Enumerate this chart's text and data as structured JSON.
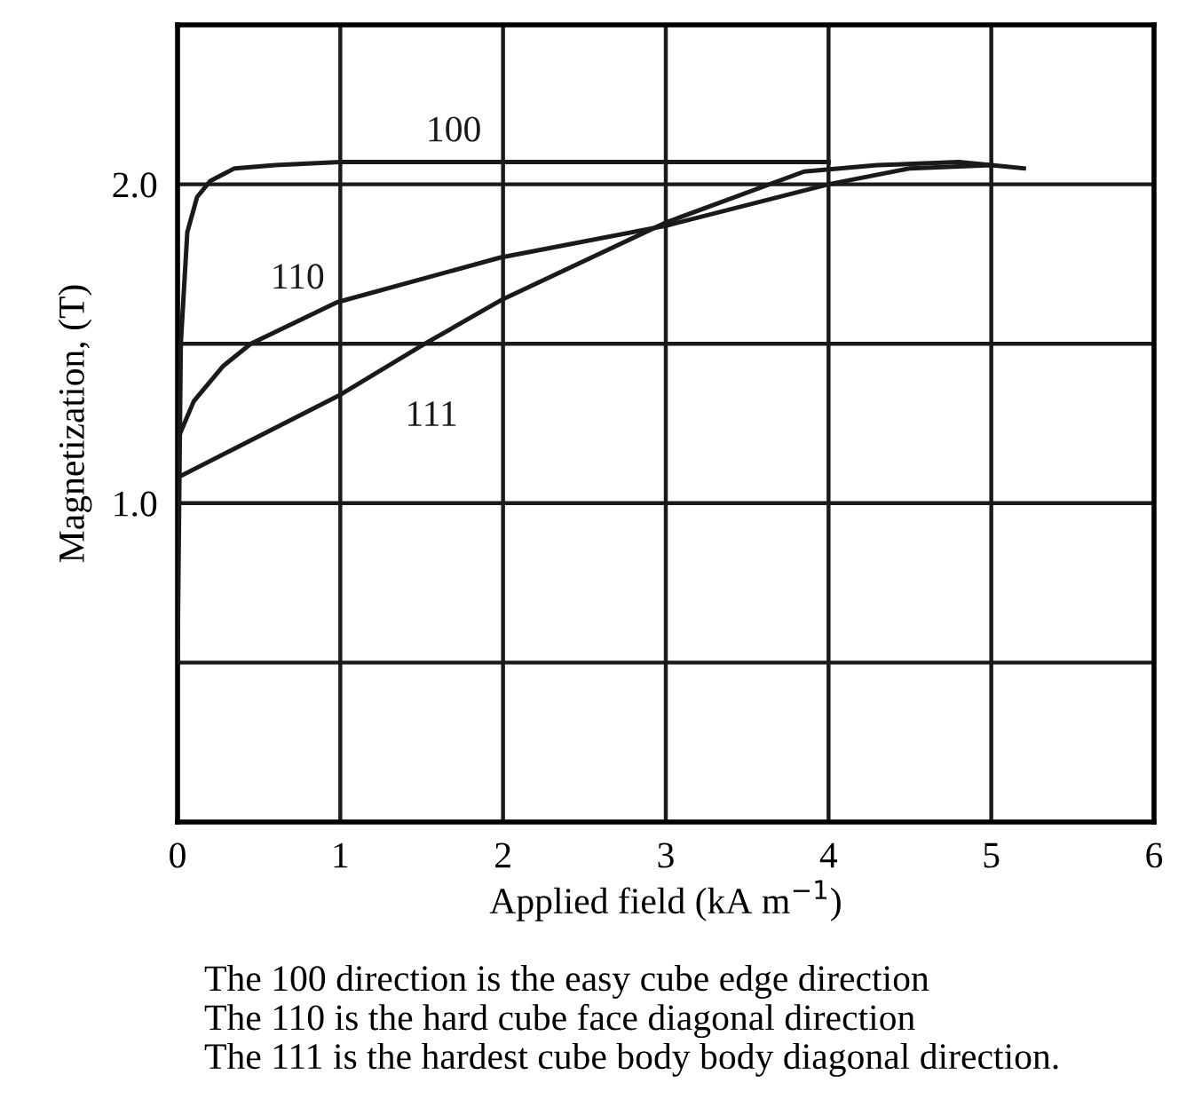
{
  "chart_data": {
    "type": "line",
    "xlabel": "Applied field (kA m$^{−1}$)",
    "ylabel": "Magnetization, (T)",
    "xlim": [
      0,
      6
    ],
    "xticks": [
      0,
      1,
      2,
      3,
      4,
      5,
      6
    ],
    "ylim": [
      0,
      2.5
    ],
    "yticks": [
      {
        "value": 0,
        "label": null
      },
      {
        "value": 0.5,
        "label": null
      },
      {
        "value": 1.0,
        "label": "1.0"
      },
      {
        "value": 1.5,
        "label": null
      },
      {
        "value": 2.0,
        "label": "2.0"
      },
      {
        "value": 2.5,
        "label": null
      }
    ],
    "grid": true,
    "legend": false,
    "line_style": "solid",
    "marker": "none",
    "series": [
      {
        "name": "100",
        "color": "#1a1a1a",
        "x": [
          0,
          0.02,
          0.06,
          0.12,
          0.2,
          0.35,
          0.6,
          1,
          2,
          3,
          4
        ],
        "values": [
          0.5,
          1.5,
          1.85,
          1.96,
          2.01,
          2.05,
          2.06,
          2.07,
          2.07,
          2.07,
          2.07
        ]
      },
      {
        "name": "110",
        "color": "#1a1a1a",
        "x": [
          0,
          0.1,
          0.28,
          0.45,
          0.98,
          1.98,
          3.0,
          4.0,
          4.5,
          5.0,
          5.2
        ],
        "values": [
          1.2,
          1.32,
          1.43,
          1.5,
          1.63,
          1.77,
          1.87,
          2.0,
          2.05,
          2.06,
          2.05
        ]
      },
      {
        "name": "111",
        "color": "#1a1a1a",
        "x": [
          0,
          1.0,
          1.52,
          2.0,
          3.0,
          3.85,
          4.3,
          4.8,
          5.0
        ],
        "values": [
          1.08,
          1.34,
          1.5,
          1.64,
          1.88,
          2.04,
          2.06,
          2.07,
          2.06
        ]
      }
    ],
    "annotations": [
      "The 100 direction is the easy cube edge direction",
      "The 110 is the hard cube face diagonal direction",
      "The 111 is the hardest cube body body diagonal direction."
    ]
  }
}
